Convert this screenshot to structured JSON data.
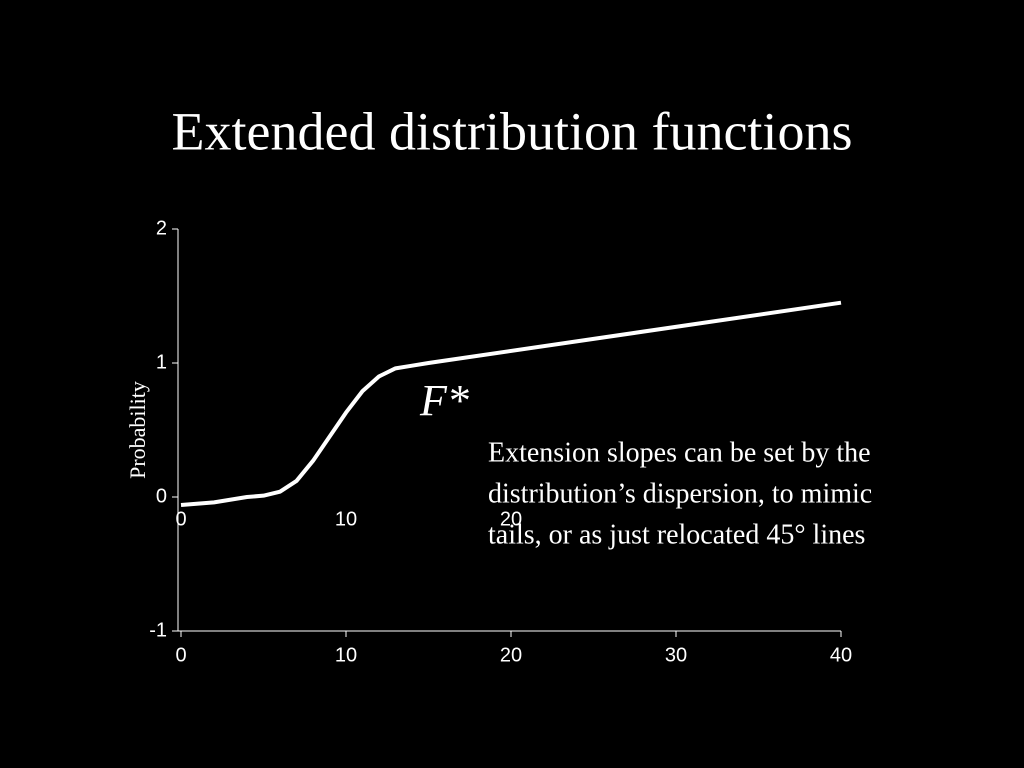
{
  "chart_data": {
    "type": "line",
    "title": "Extended distribution functions",
    "ylabel": "Probability",
    "annotation": "F*",
    "note_lines": [
      "Extension slopes can be set by the",
      "distribution’s dispersion, to mimic",
      "tails, or as just relocated 45° lines"
    ],
    "x": [
      0,
      2,
      4,
      5,
      6,
      7,
      8,
      9,
      10,
      11,
      12,
      13,
      14,
      15,
      40
    ],
    "series": [
      {
        "color": "#ffffff",
        "values": [
          -0.06,
          -0.04,
          0,
          0.01,
          0.04,
          0.12,
          0.27,
          0.45,
          0.63,
          0.79,
          0.9,
          0.96,
          0.98,
          1.0,
          1.45
        ]
      }
    ],
    "xlim": [
      0,
      40
    ],
    "xticks": [
      0,
      10,
      20,
      30,
      40
    ],
    "inner_xticks": [
      0,
      10,
      20
    ],
    "ylim": [
      -1,
      2
    ],
    "yticks": [
      -1,
      0,
      1,
      2
    ],
    "title_color": "#ffff00"
  }
}
